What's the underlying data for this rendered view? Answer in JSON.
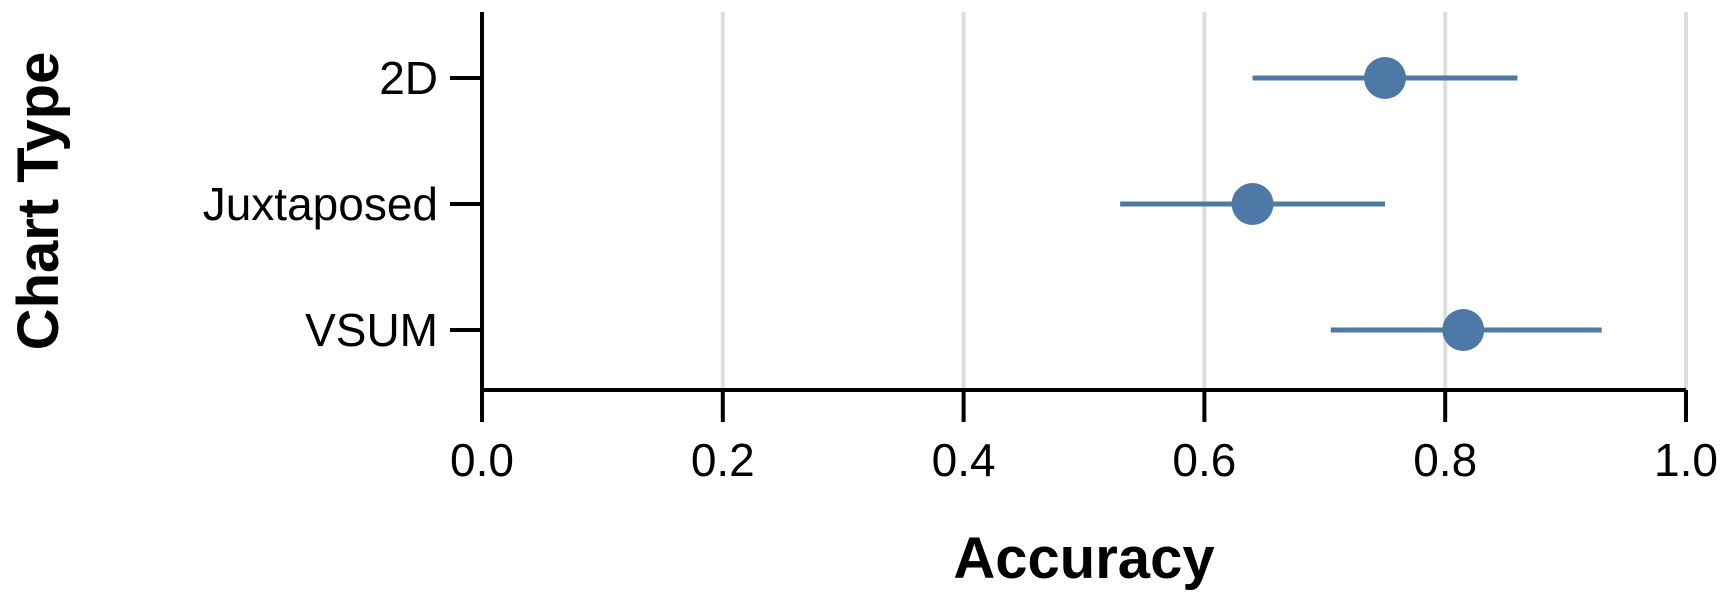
{
  "chart_data": {
    "type": "scatter",
    "subtype": "dot-with-error-bars",
    "orientation": "horizontal",
    "xlabel": "Accuracy",
    "ylabel": "Chart Type",
    "xlim": [
      0,
      1
    ],
    "xticks": [
      "0.0",
      "0.2",
      "0.4",
      "0.6",
      "0.8",
      "1.0"
    ],
    "categories": [
      "2D",
      "Juxtaposed",
      "VSUM"
    ],
    "series": [
      {
        "values": [
          0.75,
          0.64,
          0.815
        ],
        "ci_low": [
          0.64,
          0.53,
          0.705
        ],
        "ci_high": [
          0.86,
          0.75,
          0.93
        ]
      }
    ],
    "grid": "vertical",
    "legend": "none",
    "colors": {
      "mark": "#4e79a7",
      "grid": "#dddddd",
      "axis": "#000000"
    }
  }
}
